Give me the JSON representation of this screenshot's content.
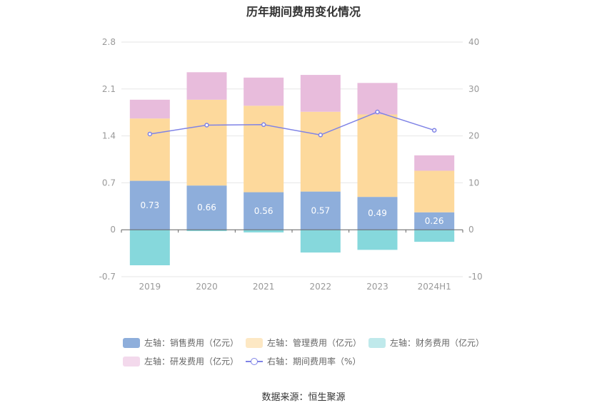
{
  "title": "历年期间费用变化情况",
  "source": "数据来源：恒生聚源",
  "chart_data": {
    "type": "bar",
    "stacked": true,
    "categories": [
      "2019",
      "2020",
      "2021",
      "2022",
      "2023",
      "2024H1"
    ],
    "left_axis": {
      "min": -0.7,
      "max": 2.8,
      "ticks": [
        "-0.7",
        "0",
        "0.7",
        "1.4",
        "2.1",
        "2.8"
      ]
    },
    "right_axis": {
      "min": -10,
      "max": 40,
      "ticks": [
        "-10",
        "0",
        "10",
        "20",
        "30",
        "40"
      ]
    },
    "series": [
      {
        "name": "左轴：销售费用（亿元）",
        "axis": "left",
        "color": "#8eaedb",
        "values": [
          0.73,
          0.66,
          0.56,
          0.57,
          0.49,
          0.26
        ],
        "labels": [
          "0.73",
          "0.66",
          "0.56",
          "0.57",
          "0.49",
          "0.26"
        ]
      },
      {
        "name": "左轴：管理费用（亿元）",
        "axis": "left",
        "color": "#fdd99c",
        "values": [
          0.93,
          1.28,
          1.29,
          1.19,
          1.23,
          0.62
        ]
      },
      {
        "name": "左轴：财务费用（亿元）",
        "axis": "left",
        "color": "#86d8dc",
        "values": [
          -0.53,
          -0.02,
          -0.04,
          -0.34,
          -0.3,
          -0.18
        ]
      },
      {
        "name": "左轴：研发费用（亿元）",
        "axis": "left",
        "color": "#e8bcdc",
        "values": [
          0.28,
          0.41,
          0.42,
          0.55,
          0.47,
          0.23
        ]
      },
      {
        "name": "右轴：期间费用率（%）",
        "axis": "right",
        "type": "line",
        "color": "#7f83e6",
        "values": [
          20.4,
          22.3,
          22.4,
          20.2,
          25.1,
          21.2
        ]
      }
    ],
    "legend_position": "bottom",
    "grid": true
  }
}
